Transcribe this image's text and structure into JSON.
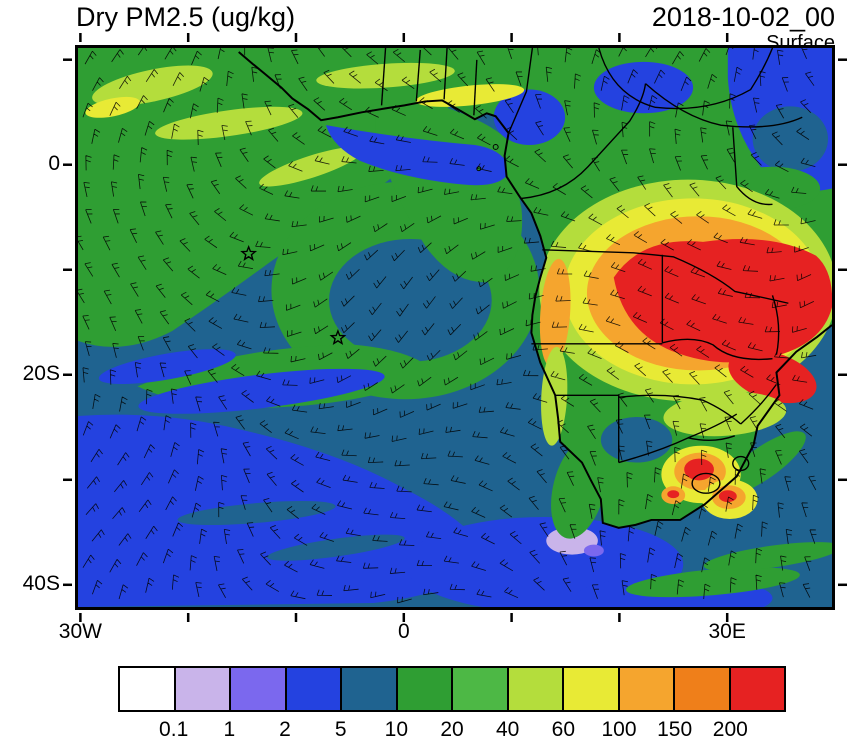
{
  "header": {
    "title": "Dry PM2.5 (ug/kg)",
    "datetime": "2018-10-02_00",
    "level": "Surface"
  },
  "chart_data": {
    "type": "heatmap",
    "title": "Dry PM2.5 (ug/kg)",
    "timestamp_label": "2018-10-02_00",
    "level_label": "Surface",
    "units": "ug/kg",
    "projection": "lat-lon map of south Atlantic and southern Africa",
    "x_axis": {
      "kind": "longitude",
      "ticks": [
        {
          "label": "30W",
          "deg": -30
        },
        {
          "label": "0",
          "deg": 0
        },
        {
          "label": "30E",
          "deg": 30
        }
      ],
      "minor_deg": [
        -20,
        -10,
        10,
        20
      ],
      "range_deg": [
        -30.5,
        40
      ]
    },
    "y_axis": {
      "kind": "latitude",
      "ticks": [
        {
          "label": "0",
          "deg": 0
        },
        {
          "label": "20S",
          "deg": -20
        },
        {
          "label": "40S",
          "deg": -40
        }
      ],
      "minor_deg": [
        10,
        -10,
        -30
      ],
      "range_deg": [
        -42.4,
        11.4
      ]
    },
    "colorbar": {
      "labels": [
        "0.1",
        "1",
        "2",
        "5",
        "10",
        "20",
        "40",
        "60",
        "100",
        "150",
        "200"
      ],
      "colors": [
        "#ffffff",
        "#c9b4ea",
        "#7b68ee",
        "#2442e0",
        "#1f6390",
        "#2f9e33",
        "#4db845",
        "#b4dd3c",
        "#e8ea35",
        "#f5a52e",
        "#ef7f1a",
        "#e62222"
      ]
    },
    "wind_overlay": "surface wind barbs",
    "markers": [
      {
        "type": "open-star",
        "approx_lon": -14.6,
        "approx_lat": -8.4
      },
      {
        "type": "open-star",
        "approx_lon": -6.3,
        "approx_lat": -16.5
      }
    ],
    "field_summary": "High PM2.5 (100-200+) over central Africa/Angola/DRC burning region with secondary maxima in eastern South Africa; 10-20 plume over eastern tropical Atlantic; <5 over remote South Atlantic"
  }
}
